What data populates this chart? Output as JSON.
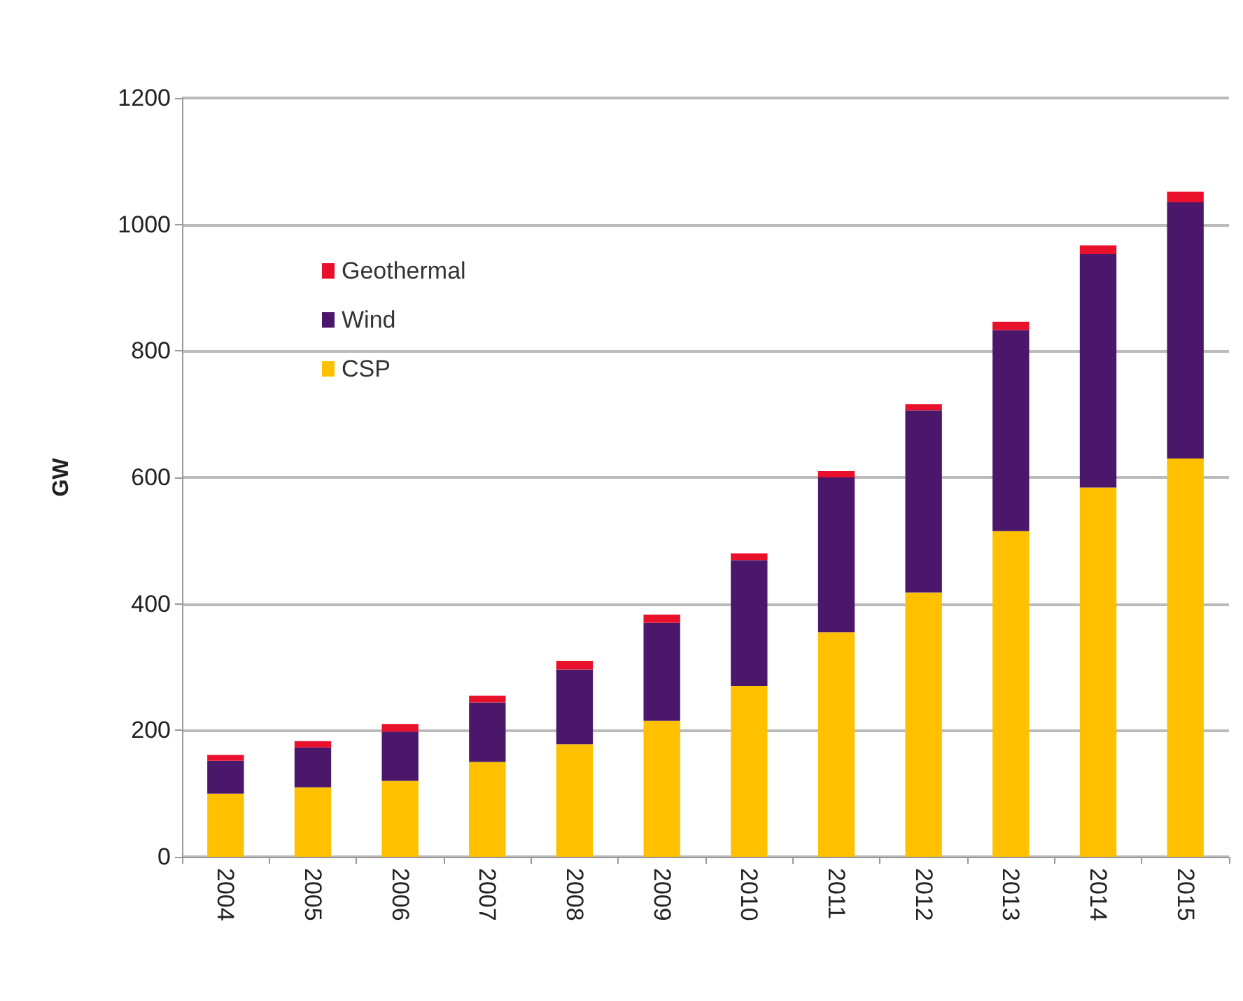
{
  "chart_data": {
    "type": "bar",
    "stacked": true,
    "ylabel": "GW",
    "categories": [
      "2004",
      "2005",
      "2006",
      "2007",
      "2008",
      "2009",
      "2010",
      "2011",
      "2012",
      "2013",
      "2014",
      "2015"
    ],
    "series": [
      {
        "name": "CSP",
        "color": "#ffc000",
        "values": [
          100,
          110,
          120,
          150,
          178,
          215,
          270,
          355,
          418,
          515,
          584,
          630
        ]
      },
      {
        "name": "Wind",
        "color": "#4b176b",
        "values": [
          52,
          63,
          78,
          94,
          118,
          155,
          199,
          245,
          288,
          318,
          369,
          405
        ]
      },
      {
        "name": "Geothermal",
        "color": "#e8102a",
        "values": [
          9,
          10,
          12,
          11,
          14,
          13,
          11,
          10,
          10,
          13,
          14,
          17
        ]
      }
    ],
    "ylim": [
      0,
      1200
    ],
    "yticks": [
      0,
      200,
      400,
      600,
      800,
      1000,
      1200
    ],
    "grid": "y",
    "legend": "top left"
  }
}
